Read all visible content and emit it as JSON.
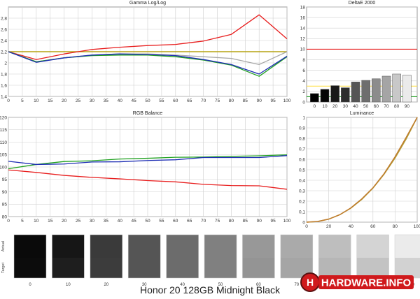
{
  "page_title": "Honor 20 128GB Midnight Black",
  "brand": {
    "logo_text": "HARDWARE.INFO",
    "colors": {
      "red": "#d0191c",
      "dark": "#5a1010"
    }
  },
  "colors": {
    "red": "#e81e1e",
    "green": "#1fa01f",
    "blue": "#1e2eb4",
    "gray": "#a8a8a8",
    "target": "#b5a312",
    "lum_actual": "#c07b2c",
    "lum_target": "#b0a23a",
    "grid": "#cfcfcf",
    "frame": "#9a9a9a"
  },
  "chart_data": [
    {
      "id": "gamma",
      "type": "line",
      "title": "Gamma Log/Log",
      "xlim": [
        0,
        100
      ],
      "ylim": [
        1.4,
        3.0
      ],
      "xticks": [
        0,
        5,
        10,
        15,
        20,
        25,
        30,
        35,
        40,
        45,
        50,
        55,
        60,
        65,
        70,
        75,
        80,
        85,
        90,
        95,
        100
      ],
      "yticks": [
        1.4,
        1.6,
        1.8,
        2,
        2.2,
        2.4,
        2.6,
        2.8
      ],
      "ytick_labels": [
        "1,4",
        "1,6",
        "1,8",
        "2",
        "2,2",
        "2,4",
        "2,6",
        "2,8"
      ],
      "x": [
        0,
        10,
        20,
        30,
        40,
        50,
        60,
        70,
        80,
        90,
        100
      ],
      "target": 2.2,
      "series": [
        {
          "name": "Red",
          "color": "red",
          "values": [
            2.2,
            2.06,
            2.16,
            2.24,
            2.28,
            2.31,
            2.33,
            2.39,
            2.51,
            2.86,
            2.43
          ]
        },
        {
          "name": "White",
          "color": "gray",
          "values": [
            2.2,
            2.02,
            2.09,
            2.14,
            2.16,
            2.16,
            2.14,
            2.11,
            2.08,
            1.97,
            2.2
          ]
        },
        {
          "name": "Green",
          "color": "green",
          "values": [
            2.2,
            2.02,
            2.09,
            2.13,
            2.14,
            2.14,
            2.11,
            2.05,
            1.96,
            1.76,
            2.11
          ]
        },
        {
          "name": "Blue",
          "color": "blue",
          "values": [
            2.2,
            2.01,
            2.09,
            2.14,
            2.16,
            2.15,
            2.13,
            2.06,
            1.97,
            1.8,
            2.12
          ]
        }
      ]
    },
    {
      "id": "deltae",
      "type": "bar",
      "title": "DeltaE 2000",
      "ylim": [
        0,
        18
      ],
      "yticks": [
        0,
        2,
        4,
        6,
        8,
        10,
        12,
        14,
        16,
        18
      ],
      "categories": [
        "0",
        "10",
        "20",
        "30",
        "40",
        "50",
        "60",
        "70",
        "80",
        "90"
      ],
      "values": [
        1.6,
        2.4,
        3.1,
        2.7,
        3.8,
        4.1,
        4.4,
        4.9,
        5.3,
        5.1
      ],
      "bar_shades": [
        0,
        5,
        25,
        45,
        85,
        110,
        140,
        165,
        200,
        235
      ],
      "reference_lines": [
        {
          "value": 10,
          "color": "red"
        },
        {
          "value": 3,
          "color": "#ffe14d"
        },
        {
          "value": 1,
          "color": "green"
        }
      ]
    },
    {
      "id": "rgb",
      "type": "line",
      "title": "RGB Balance",
      "xlim": [
        0,
        100
      ],
      "ylim": [
        80,
        120
      ],
      "xticks": [
        0,
        5,
        10,
        15,
        20,
        25,
        30,
        35,
        40,
        45,
        50,
        55,
        60,
        65,
        70,
        75,
        80,
        85,
        90,
        95,
        100
      ],
      "yticks": [
        80,
        85,
        90,
        95,
        100,
        105,
        110,
        115,
        120
      ],
      "x": [
        0,
        10,
        20,
        30,
        40,
        50,
        60,
        70,
        80,
        90,
        100
      ],
      "series": [
        {
          "name": "Red",
          "color": "red",
          "values": [
            98.8,
            97.8,
            96.6,
            95.8,
            95.2,
            94.5,
            94,
            93,
            92.5,
            92.4,
            91
          ]
        },
        {
          "name": "Green",
          "color": "green",
          "values": [
            99.3,
            101,
            102.2,
            102.5,
            103.2,
            103.5,
            103.9,
            104,
            104.3,
            104.5,
            104.9
          ]
        },
        {
          "name": "Blue",
          "color": "blue",
          "values": [
            102.3,
            101,
            101.2,
            102,
            102.1,
            102.6,
            102.9,
            103.8,
            103.8,
            103.8,
            104.6
          ]
        }
      ]
    },
    {
      "id": "luminance",
      "type": "line",
      "title": "Luminance",
      "xlim": [
        0,
        100
      ],
      "ylim": [
        0,
        1
      ],
      "xticks": [
        0,
        20,
        40,
        60,
        80,
        100
      ],
      "yticks": [
        0,
        0.1,
        0.2,
        0.3,
        0.4,
        0.5,
        0.6,
        0.7,
        0.8,
        0.9,
        1
      ],
      "ytick_labels": [
        "0",
        "0,1",
        "0,2",
        "0,3",
        "0,4",
        "0,5",
        "0,6",
        "0,7",
        "0,8",
        "0,9",
        "1"
      ],
      "x": [
        0,
        10,
        20,
        30,
        40,
        50,
        60,
        70,
        80,
        90,
        100
      ],
      "series": [
        {
          "name": "Target",
          "color": "lum_target",
          "values": [
            0,
            0.006,
            0.029,
            0.071,
            0.133,
            0.218,
            0.325,
            0.456,
            0.612,
            0.793,
            1
          ]
        },
        {
          "name": "Actual",
          "color": "lum_actual",
          "values": [
            0,
            0.007,
            0.029,
            0.071,
            0.136,
            0.223,
            0.328,
            0.462,
            0.624,
            0.808,
            1
          ]
        }
      ]
    },
    {
      "id": "grayscale",
      "type": "swatches",
      "row_labels": [
        "Actual",
        "Target"
      ],
      "labels": [
        "0",
        "10",
        "20",
        "30",
        "40",
        "50",
        "60",
        "70",
        "80",
        "90",
        "100"
      ],
      "actual_levels": [
        10,
        22,
        58,
        85,
        108,
        128,
        152,
        170,
        190,
        212,
        235
      ],
      "target_levels": [
        12,
        30,
        60,
        85,
        108,
        128,
        148,
        165,
        182,
        195,
        210
      ]
    }
  ]
}
